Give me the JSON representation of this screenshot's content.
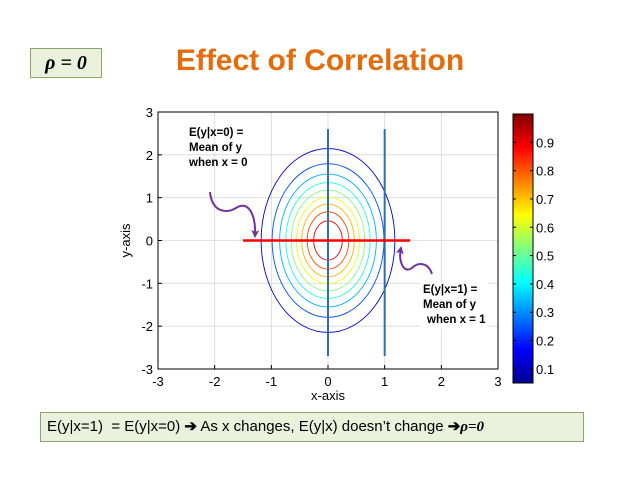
{
  "rho_label": "ρ = 0",
  "title": "Effect of Correlation",
  "annotations": {
    "e0_line1": "E(y|x=0) =",
    "e0_line2": "Mean of y",
    "e0_line3": "when x = 0",
    "e1_line1": "E(y|x=1) =",
    "e1_line2": "Mean of y",
    "e1_line3": "when x = 1"
  },
  "bottom": {
    "text": "E(y|x=1)  = E(y|x=0) ",
    "arrow1": "➔",
    "text2": " As x changes, E(y|x) doesn’t change ",
    "arrow2": "➔",
    "rho_text": "ρ=0"
  },
  "chart_data": {
    "type": "contour",
    "xlabel": "x-axis",
    "ylabel": "y-axis",
    "xlim": [
      -3,
      3
    ],
    "ylim": [
      -3,
      3
    ],
    "xticks": [
      "-3",
      "-2",
      "-1",
      "0",
      "1",
      "2",
      "3"
    ],
    "yticks": [
      "-3",
      "-2",
      "-1",
      "0",
      "1",
      "2",
      "3"
    ],
    "grid": true,
    "distribution": {
      "mean_x": 0,
      "mean_y": 0,
      "sigma_x": 0.55,
      "sigma_y": 1.0,
      "rho": 0
    },
    "contour_levels": [
      0.1,
      0.2,
      0.3,
      0.4,
      0.5,
      0.6,
      0.7,
      0.8,
      0.9
    ],
    "vertical_lines": [
      {
        "x": 0,
        "y_range": [
          -2.7,
          2.6
        ]
      },
      {
        "x": 1,
        "y_range": [
          -2.7,
          2.6
        ]
      }
    ],
    "conditional_mean_line": {
      "y": 0,
      "x_range": [
        -1.5,
        1.45
      ]
    },
    "colorbar": {
      "ticks": [
        "0.1",
        "0.2",
        "0.3",
        "0.4",
        "0.5",
        "0.6",
        "0.7",
        "0.8",
        "0.9"
      ],
      "range": [
        0.05,
        1.0
      ]
    },
    "colors": {
      "vertical_lines": "#2f6fb0",
      "mean_line": "#ff0000",
      "arrows": "#7030a0"
    }
  }
}
